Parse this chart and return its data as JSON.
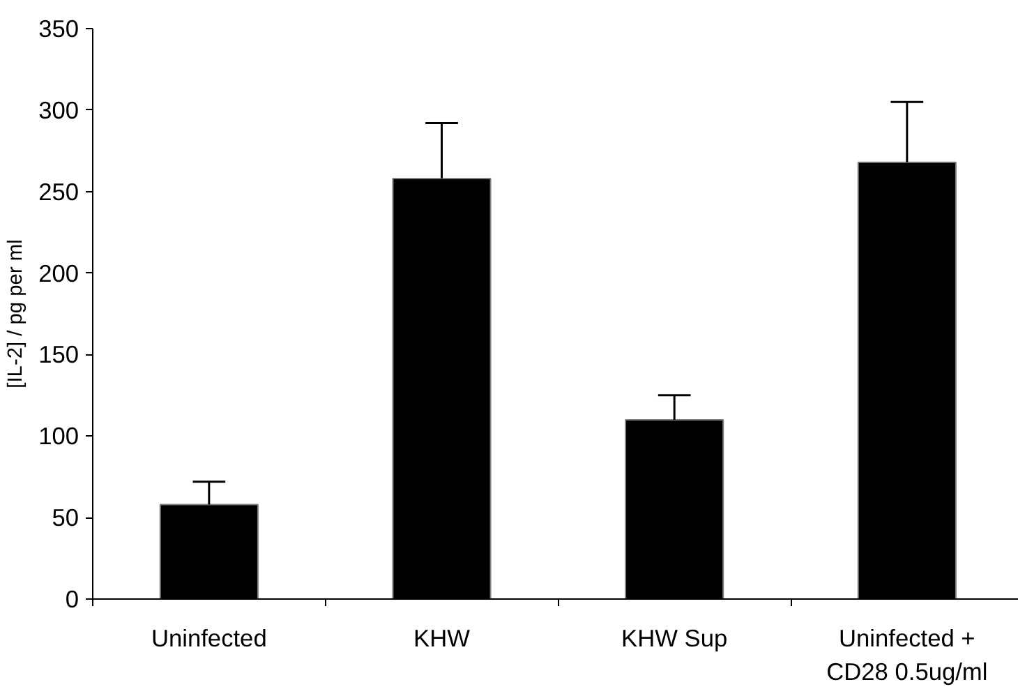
{
  "chart_data": {
    "type": "bar",
    "ylabel": "[IL-2] / pg per ml",
    "categories": [
      "Uninfected",
      "KHW",
      "KHW Sup",
      "Uninfected +\nCD28 0.5ug/ml"
    ],
    "values": [
      58,
      258,
      110,
      268
    ],
    "errors": [
      [
        58,
        72
      ],
      [
        258,
        292
      ],
      [
        110,
        125
      ],
      [
        268,
        305
      ]
    ],
    "color": "#000000",
    "ylim": [
      0,
      350
    ],
    "yticks": [
      0,
      50,
      100,
      150,
      200,
      250,
      300,
      350
    ],
    "grid": false
  }
}
